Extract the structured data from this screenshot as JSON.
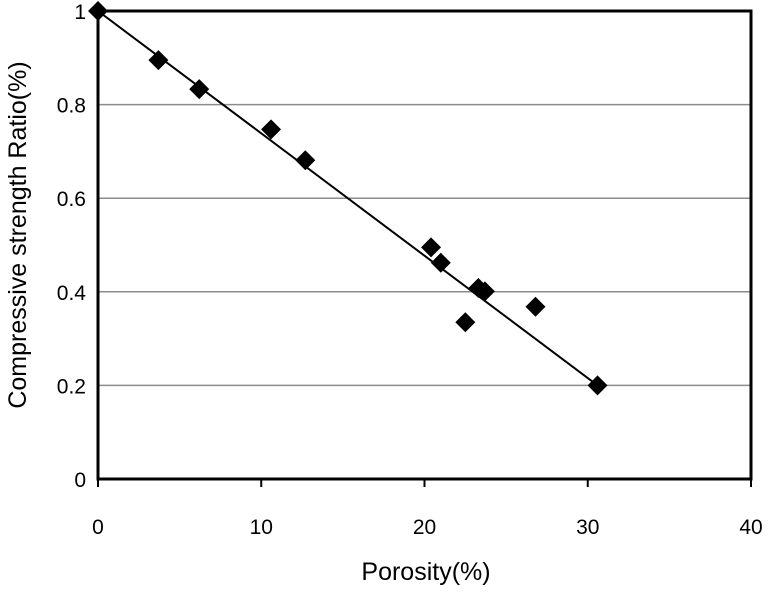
{
  "chart_data": {
    "type": "scatter",
    "xlabel": "Porosity(%)",
    "ylabel": "Compressive strength Ratio(%)",
    "xlim": [
      0,
      40
    ],
    "ylim": [
      0,
      1
    ],
    "x_ticks": [
      "0",
      "10",
      "20",
      "30",
      "40"
    ],
    "y_ticks": [
      "0",
      "0.2",
      "0.4",
      "0.6",
      "0.8",
      "1"
    ],
    "grid": "horizontal",
    "legend": "none",
    "marker": "diamond",
    "marker_color": "#000000",
    "series": [
      {
        "points": [
          {
            "x": 0,
            "y": 1.0
          },
          {
            "x": 3.7,
            "y": 0.895
          },
          {
            "x": 6.2,
            "y": 0.833
          },
          {
            "x": 10.6,
            "y": 0.747
          },
          {
            "x": 12.7,
            "y": 0.681
          },
          {
            "x": 20.4,
            "y": 0.495
          },
          {
            "x": 21.0,
            "y": 0.462
          },
          {
            "x": 23.3,
            "y": 0.408
          },
          {
            "x": 23.7,
            "y": 0.401
          },
          {
            "x": 22.5,
            "y": 0.335
          },
          {
            "x": 26.8,
            "y": 0.368
          },
          {
            "x": 30.6,
            "y": 0.2
          }
        ]
      }
    ],
    "trendline": {
      "type": "linear",
      "x": [
        0,
        30.6
      ],
      "y": [
        1.0,
        0.2
      ]
    }
  }
}
